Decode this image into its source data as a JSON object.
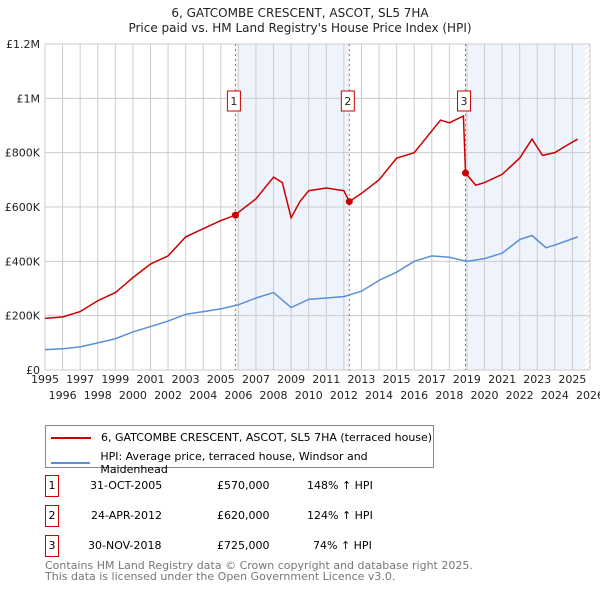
{
  "chart_data": {
    "type": "line",
    "title": "6, GATCOMBE CRESCENT, ASCOT, SL5 7HA",
    "subtitle": "Price paid vs. HM Land Registry's House Price Index (HPI)",
    "xlim": [
      1995,
      2026
    ],
    "ylim": [
      0,
      1200000
    ],
    "x_ticks": [
      "1995",
      "1996",
      "1997",
      "1998",
      "1999",
      "2000",
      "2001",
      "2002",
      "2003",
      "2004",
      "2005",
      "2006",
      "2007",
      "2008",
      "2009",
      "2010",
      "2011",
      "2012",
      "2013",
      "2014",
      "2015",
      "2016",
      "2017",
      "2018",
      "2019",
      "2020",
      "2021",
      "2022",
      "2023",
      "2024",
      "2025",
      "2026"
    ],
    "y_ticks": [
      {
        "v": 0,
        "label": "£0"
      },
      {
        "v": 200000,
        "label": "£200K"
      },
      {
        "v": 400000,
        "label": "£400K"
      },
      {
        "v": 600000,
        "label": "£600K"
      },
      {
        "v": 800000,
        "label": "£800K"
      },
      {
        "v": 1000000,
        "label": "£1M"
      },
      {
        "v": 1200000,
        "label": "£1.2M"
      }
    ],
    "grid": true,
    "shaded_ranges": [
      [
        2005.83,
        2012.31
      ],
      [
        2018.92,
        2025.7
      ]
    ],
    "hatched_from": 2025.7,
    "series": [
      {
        "name": "6, GATCOMBE CRESCENT, ASCOT, SL5 7HA (terraced house)",
        "color": "#cc0000",
        "x": [
          1995,
          1996,
          1997,
          1998,
          1999,
          2000,
          2001,
          2002,
          2003,
          2004,
          2005,
          2005.83,
          2006,
          2007,
          2008,
          2008.5,
          2009,
          2009.5,
          2010,
          2011,
          2012,
          2012.31,
          2013,
          2014,
          2015,
          2016,
          2017,
          2017.5,
          2018,
          2018.8,
          2018.92,
          2019.5,
          2020,
          2021,
          2022,
          2022.7,
          2023.3,
          2024,
          2024.5,
          2025.3
        ],
        "y": [
          190000,
          195000,
          215000,
          255000,
          285000,
          340000,
          390000,
          420000,
          490000,
          520000,
          550000,
          570000,
          580000,
          630000,
          710000,
          690000,
          560000,
          620000,
          660000,
          670000,
          660000,
          620000,
          650000,
          700000,
          780000,
          800000,
          880000,
          920000,
          910000,
          935000,
          725000,
          680000,
          690000,
          720000,
          780000,
          850000,
          790000,
          800000,
          820000,
          850000
        ]
      },
      {
        "name": "HPI: Average price, terraced house, Windsor and Maidenhead",
        "color": "#5b8fd6",
        "x": [
          1995,
          1996,
          1997,
          1998,
          1999,
          2000,
          2001,
          2002,
          2003,
          2004,
          2005,
          2006,
          2007,
          2008,
          2009,
          2010,
          2011,
          2012,
          2013,
          2014,
          2015,
          2016,
          2017,
          2018,
          2019,
          2020,
          2021,
          2022,
          2022.7,
          2023.5,
          2024,
          2025.3
        ],
        "y": [
          75000,
          78000,
          85000,
          100000,
          115000,
          140000,
          160000,
          180000,
          205000,
          215000,
          225000,
          240000,
          265000,
          285000,
          230000,
          260000,
          265000,
          270000,
          290000,
          330000,
          360000,
          400000,
          420000,
          415000,
          400000,
          410000,
          430000,
          480000,
          495000,
          450000,
          460000,
          490000
        ]
      }
    ],
    "sales": [
      {
        "n": "1",
        "date": "31-OCT-2005",
        "x": 2005.83,
        "price": "£570,000",
        "value": 570000,
        "hpi": "148% ↑ HPI"
      },
      {
        "n": "2",
        "date": "24-APR-2012",
        "x": 2012.31,
        "price": "£620,000",
        "value": 620000,
        "hpi": "124% ↑ HPI"
      },
      {
        "n": "3",
        "date": "30-NOV-2018",
        "x": 2018.92,
        "price": "£725,000",
        "value": 725000,
        "hpi": "74% ↑ HPI"
      }
    ]
  },
  "footer": {
    "line1": "Contains HM Land Registry data © Crown copyright and database right 2025.",
    "line2": "This data is licensed under the Open Government Licence v3.0."
  }
}
